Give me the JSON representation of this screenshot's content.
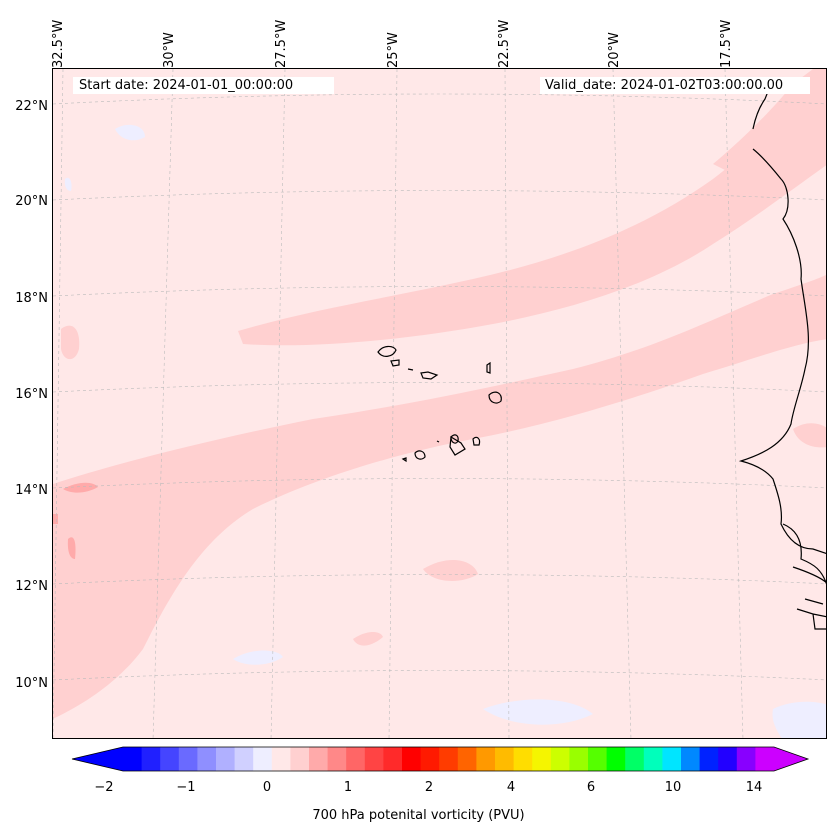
{
  "map": {
    "start_date": "Start date: 2024-01-01_00:00:00",
    "valid_date": "Valid_date: 2024-01-02T03:00:00.00",
    "lon_labels": [
      "32.5°W",
      "30°W",
      "27.5°W",
      "25°W",
      "22.5°W",
      "20°W",
      "17.5°W"
    ],
    "lat_labels": [
      "22°N",
      "20°N",
      "18°N",
      "16°N",
      "14°N",
      "12°N",
      "10°N"
    ],
    "colors": {
      "background": "#ffe8e8",
      "band": "#ffd0d0",
      "band_dark": "#ffaaaa",
      "low_patch": "#eeeeff",
      "coastline": "#000000",
      "grid": "#bbbbbb"
    }
  },
  "colorbar": {
    "title": "700 hPa potenital vorticity (PVU)",
    "tick_labels": [
      "−2",
      "−1",
      "0",
      "1",
      "2",
      "4",
      "6",
      "10",
      "14"
    ],
    "colors": [
      "#0000ff",
      "#2020ff",
      "#4545ff",
      "#6a6aff",
      "#8f8fff",
      "#b0b0ff",
      "#d0d0ff",
      "#eeeeff",
      "#ffe8e8",
      "#ffd0d0",
      "#ffaaaa",
      "#ff8888",
      "#ff6666",
      "#ff4444",
      "#ff2a2a",
      "#ff0000",
      "#ff1a00",
      "#ff3c00",
      "#ff6400",
      "#ff9900",
      "#ffbb00",
      "#ffdd00",
      "#f5f500",
      "#ccff00",
      "#99ff00",
      "#55ff00",
      "#00ff00",
      "#00ff66",
      "#00ffbb",
      "#00e5ff",
      "#0088ff",
      "#0022ff",
      "#2200ff",
      "#8800ff",
      "#cc00ff"
    ],
    "over_color": "#cc00ff",
    "under_color": "#0000ff"
  }
}
